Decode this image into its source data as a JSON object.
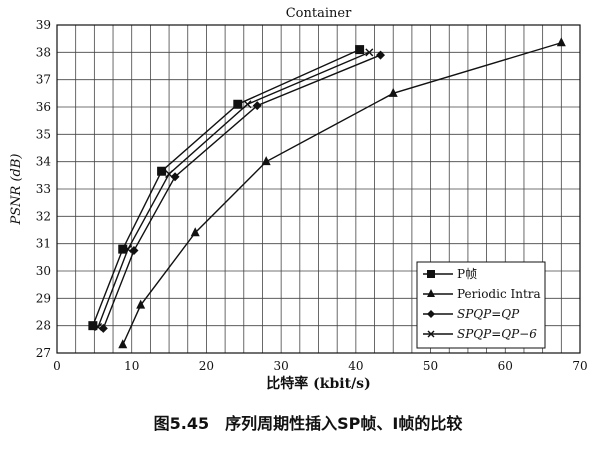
{
  "figure_caption": "图5.45　序列周期性插入SP帧、I帧的比较",
  "chart_data": {
    "type": "line",
    "title": "Container",
    "xlabel": "比特率 (kbit/s)",
    "ylabel": "PSNR (dB)",
    "xlim": [
      0,
      70
    ],
    "ylim": [
      27,
      39
    ],
    "xticks": [
      0,
      10,
      20,
      30,
      40,
      50,
      60,
      70
    ],
    "yticks": [
      27,
      28,
      29,
      30,
      31,
      32,
      33,
      34,
      35,
      36,
      37,
      38,
      39
    ],
    "grid": true,
    "legend_position": "bottom-right",
    "series": [
      {
        "name": "P帧",
        "marker": "square",
        "x": [
          4.8,
          8.8,
          14.0,
          24.2,
          40.5
        ],
        "y": [
          28.0,
          30.8,
          33.65,
          36.1,
          38.1
        ]
      },
      {
        "name": "Periodic Intra",
        "marker": "triangle",
        "x": [
          8.8,
          11.2,
          18.5,
          28.0,
          45.0,
          67.5
        ],
        "y": [
          27.3,
          28.75,
          31.4,
          34.0,
          36.5,
          38.35
        ]
      },
      {
        "name": "SPQP=QP",
        "marker": "diamond",
        "x": [
          6.2,
          10.3,
          15.8,
          26.8,
          43.3
        ],
        "y": [
          27.9,
          30.75,
          33.45,
          36.05,
          37.9
        ]
      },
      {
        "name": "SPQP=QP−6",
        "marker": "x",
        "x": [
          5.5,
          9.5,
          15.0,
          25.5,
          41.8
        ],
        "y": [
          27.95,
          30.8,
          33.55,
          36.1,
          38.0
        ]
      }
    ]
  }
}
